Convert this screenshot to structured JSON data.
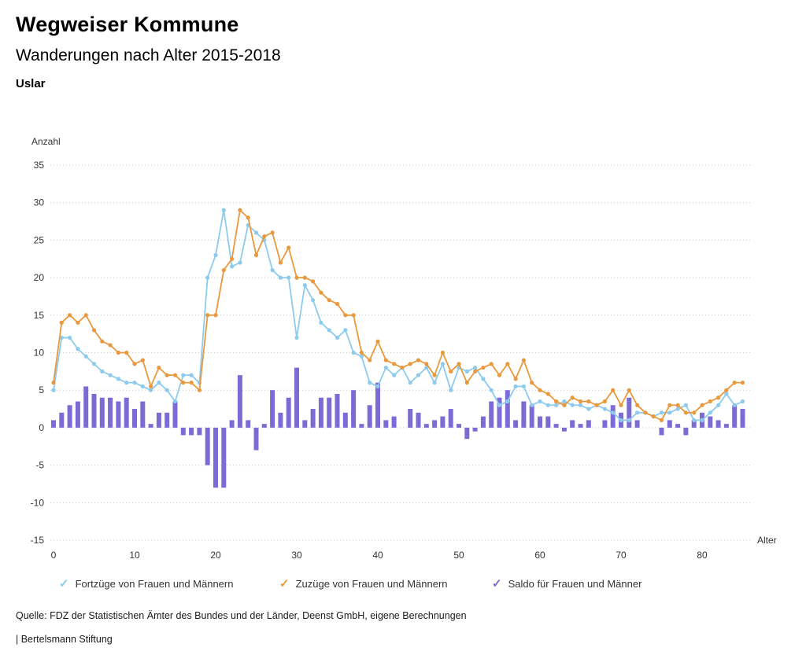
{
  "header": {
    "title": "Wegweiser Kommune",
    "subtitle": "Wanderungen nach Alter 2015-2018",
    "location": "Uslar"
  },
  "legend": {
    "marker": "✓"
  },
  "source": "Quelle: FDZ der Statistischen Ämter des Bundes und der Länder, Deenst GmbH, eigene Berechnungen",
  "footer": "| Bertelsmann Stiftung",
  "chart_data": {
    "type": "line",
    "title": "Wanderungen nach Alter 2015-2018",
    "xlabel": "Alter",
    "ylabel": "Anzahl",
    "ylim": [
      -15,
      35
    ],
    "yticks": [
      35,
      30,
      25,
      20,
      15,
      10,
      5,
      0,
      -5,
      -10,
      -15
    ],
    "xticks": [
      0,
      10,
      20,
      30,
      40,
      50,
      60,
      70,
      80
    ],
    "grid": "horizontal dotted",
    "legend_position": "bottom",
    "x": [
      0,
      1,
      2,
      3,
      4,
      5,
      6,
      7,
      8,
      9,
      10,
      11,
      12,
      13,
      14,
      15,
      16,
      17,
      18,
      19,
      20,
      21,
      22,
      23,
      24,
      25,
      26,
      27,
      28,
      29,
      30,
      31,
      32,
      33,
      34,
      35,
      36,
      37,
      38,
      39,
      40,
      41,
      42,
      43,
      44,
      45,
      46,
      47,
      48,
      49,
      50,
      51,
      52,
      53,
      54,
      55,
      56,
      57,
      58,
      59,
      60,
      61,
      62,
      63,
      64,
      65,
      66,
      67,
      68,
      69,
      70,
      71,
      72,
      73,
      74,
      75,
      76,
      77,
      78,
      79,
      80,
      81,
      82,
      83,
      84,
      85
    ],
    "series": [
      {
        "id": "fortzuege",
        "name": "Fortzüge von Frauen und Männern",
        "type": "line",
        "color": "#8DCBEE",
        "values": [
          5,
          12,
          12,
          10.5,
          9.5,
          8.5,
          7.5,
          7,
          6.5,
          6,
          6,
          5.5,
          5,
          6,
          5,
          3.5,
          7,
          7,
          6,
          20,
          23,
          29,
          21.5,
          22,
          27,
          26,
          25,
          21,
          20,
          20,
          12,
          19,
          17,
          14,
          13,
          12,
          13,
          10,
          9.5,
          6,
          5.5,
          8,
          7,
          8,
          6,
          7,
          8,
          6,
          8.5,
          5,
          8,
          7.5,
          8,
          6.5,
          5,
          3,
          3.5,
          5.5,
          5.5,
          3,
          3.5,
          3,
          3,
          3.5,
          3,
          3,
          2.5,
          3,
          2.5,
          2,
          1,
          1,
          2,
          2,
          1.5,
          2,
          2,
          2.5,
          3,
          1,
          1,
          2,
          3,
          4.5,
          3,
          3.5
        ]
      },
      {
        "id": "zuzuege",
        "name": "Zuzüge von Frauen und Männern",
        "type": "line",
        "color": "#E9993D",
        "values": [
          6,
          14,
          15,
          14,
          15,
          13,
          11.5,
          11,
          10,
          10,
          8.5,
          9,
          5.5,
          8,
          7,
          7,
          6,
          6,
          5,
          15,
          15,
          21,
          22.5,
          29,
          28,
          23,
          25.5,
          26,
          22,
          24,
          20,
          20,
          19.5,
          18,
          17,
          16.5,
          15,
          15,
          10,
          9,
          11.5,
          9,
          8.5,
          8,
          8.5,
          9,
          8.5,
          7,
          10,
          7.5,
          8.5,
          6,
          7.5,
          8,
          8.5,
          7,
          8.5,
          6.5,
          9,
          6,
          5,
          4.5,
          3.5,
          3,
          4,
          3.5,
          3.5,
          3,
          3.5,
          5,
          3,
          5,
          3,
          2,
          1.5,
          1,
          3,
          3,
          2,
          2,
          3,
          3.5,
          4,
          5,
          6,
          6
        ]
      },
      {
        "id": "saldo",
        "name": "Saldo für Frauen und Männer",
        "type": "bar",
        "color": "#7C6BD4",
        "values": [
          1,
          2,
          3,
          3.5,
          5.5,
          4.5,
          4,
          4,
          3.5,
          4,
          2.5,
          3.5,
          0.5,
          2,
          2,
          3.5,
          -1,
          -1,
          -1,
          -5,
          -8,
          -8,
          1,
          7,
          1,
          -3,
          0.5,
          5,
          2,
          4,
          8,
          1,
          2.5,
          4,
          4,
          4.5,
          2,
          5,
          0.5,
          3,
          6,
          1,
          1.5,
          0,
          2.5,
          2,
          0.5,
          1,
          1.5,
          2.5,
          0.5,
          -1.5,
          -0.5,
          1.5,
          3.5,
          4,
          5,
          1,
          3.5,
          3,
          1.5,
          1.5,
          0.5,
          -0.5,
          1,
          0.5,
          1,
          0,
          1,
          3,
          2,
          4,
          1,
          0,
          0,
          -1,
          1,
          0.5,
          -1,
          1,
          2,
          1.5,
          1,
          0.5,
          3,
          2.5
        ]
      }
    ]
  }
}
